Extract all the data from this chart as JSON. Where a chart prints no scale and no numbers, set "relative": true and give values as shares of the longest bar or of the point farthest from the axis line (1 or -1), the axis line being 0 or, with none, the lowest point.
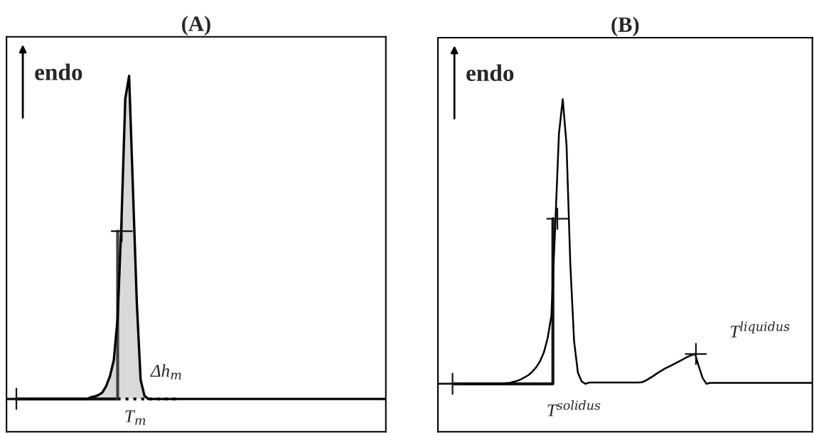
{
  "chart_data": [
    {
      "type": "line",
      "title": "(A)",
      "relative": true,
      "categories": [
        null,
        null,
        null,
        null,
        null,
        null,
        null,
        null,
        null,
        null,
        null,
        null,
        null,
        null,
        null,
        null,
        null,
        null,
        null,
        null,
        null,
        null,
        null,
        null,
        null,
        null,
        null,
        null,
        null,
        null,
        null,
        null,
        null,
        null,
        null,
        null,
        null,
        null,
        null,
        null,
        null,
        null,
        null,
        null,
        null,
        null,
        null,
        null,
        null,
        null,
        null,
        null,
        null,
        null,
        null,
        null,
        null,
        null,
        null,
        null,
        null,
        null,
        null,
        null,
        null,
        null,
        null,
        null,
        null,
        null,
        null,
        null,
        null,
        null,
        null,
        null,
        null,
        null,
        null,
        null,
        null,
        null,
        null,
        null,
        null,
        null,
        null,
        null,
        null,
        null,
        null,
        null,
        null,
        null,
        null,
        null,
        null,
        null,
        null,
        null
      ],
      "series": [
        {
          "color": "#000000",
          "values": [
            0.092,
            0.092,
            0.092,
            0.092,
            0.092,
            0.092,
            0.092,
            0.092,
            0.092,
            0.092,
            0.092,
            0.092,
            0.092,
            0.092,
            0.092,
            0.092,
            0.092,
            0.092,
            0.092,
            0.092,
            0.092,
            0.092,
            0.097,
            0.099,
            0.103,
            0.11,
            0.128,
            0.156,
            0.201,
            0.319,
            0.591,
            0.936,
            1.0,
            0.682,
            0.364,
            0.146,
            0.101,
            0.092,
            0.092,
            0.092,
            0.092,
            0.092,
            0.092,
            0.092,
            0.092,
            0.092,
            0.092,
            0.092,
            0.092,
            0.092,
            0.092,
            0.092,
            0.092,
            0.092,
            0.092,
            0.092,
            0.092,
            0.092,
            0.092,
            0.092,
            0.092,
            0.092,
            0.092,
            0.092,
            0.092,
            0.092,
            0.092,
            0.092,
            0.092,
            0.092,
            0.092,
            0.092,
            0.092,
            0.092,
            0.092,
            0.092,
            0.092,
            0.092,
            0.092,
            0.092,
            0.092,
            0.092,
            0.092,
            0.092,
            0.092,
            0.092,
            0.092,
            0.092,
            0.092,
            0.092,
            0.092,
            0.092,
            0.092,
            0.092,
            0.092,
            0.092,
            0.092,
            0.092,
            0.092,
            0.092
          ]
        }
      ],
      "annotations": [
        "endo",
        "Δh$_{m}$",
        "T$_{m}$"
      ]
    },
    {
      "type": "line",
      "title": "(B)",
      "relative": true,
      "categories": [
        null,
        null,
        null,
        null,
        null,
        null,
        null,
        null,
        null,
        null,
        null,
        null,
        null,
        null,
        null,
        null,
        null,
        null,
        null,
        null,
        null,
        null,
        null,
        null,
        null,
        null,
        null,
        null,
        null,
        null,
        null,
        null,
        null,
        null,
        null,
        null,
        null,
        null,
        null,
        null,
        null,
        null,
        null,
        null,
        null,
        null,
        null,
        null,
        null,
        null,
        null,
        null,
        null,
        null,
        null,
        null,
        null,
        null,
        null,
        null,
        null,
        null,
        null,
        null,
        null,
        null,
        null,
        null,
        null,
        null,
        null,
        null,
        null,
        null,
        null,
        null,
        null,
        null,
        null,
        null,
        null,
        null,
        null,
        null,
        null,
        null,
        null,
        null,
        null,
        null,
        null,
        null,
        null,
        null,
        null,
        null,
        null,
        null,
        null,
        null
      ],
      "series": [
        {
          "color": "#000000",
          "values": [
            0.144,
            0.144,
            0.144,
            0.144,
            0.144,
            0.144,
            0.144,
            0.144,
            0.144,
            0.144,
            0.144,
            0.144,
            0.144,
            0.144,
            0.144,
            0.144,
            0.144,
            0.144,
            0.146,
            0.147,
            0.15,
            0.153,
            0.158,
            0.164,
            0.171,
            0.181,
            0.194,
            0.212,
            0.238,
            0.281,
            0.349,
            0.615,
            0.897,
            1.0,
            0.863,
            0.504,
            0.272,
            0.178,
            0.151,
            0.144,
            0.148,
            0.148,
            0.148,
            0.148,
            0.148,
            0.148,
            0.148,
            0.148,
            0.148,
            0.148,
            0.148,
            0.148,
            0.148,
            0.148,
            0.149,
            0.154,
            0.161,
            0.168,
            0.176,
            0.183,
            0.19,
            0.195,
            0.201,
            0.207,
            0.213,
            0.219,
            0.225,
            0.23,
            0.234,
            0.195,
            0.161,
            0.144,
            0.147,
            0.147,
            0.147,
            0.147,
            0.147,
            0.147,
            0.147,
            0.147,
            0.147,
            0.147,
            0.147,
            0.147,
            0.147,
            0.147,
            0.147,
            0.147,
            0.147,
            0.147,
            0.147,
            0.147,
            0.147,
            0.147,
            0.147,
            0.147,
            0.147,
            0.147,
            0.147,
            0.147
          ]
        }
      ],
      "annotations": [
        "endo",
        "T$^{solidus}$",
        "T$^{liquidus}$"
      ]
    }
  ]
}
